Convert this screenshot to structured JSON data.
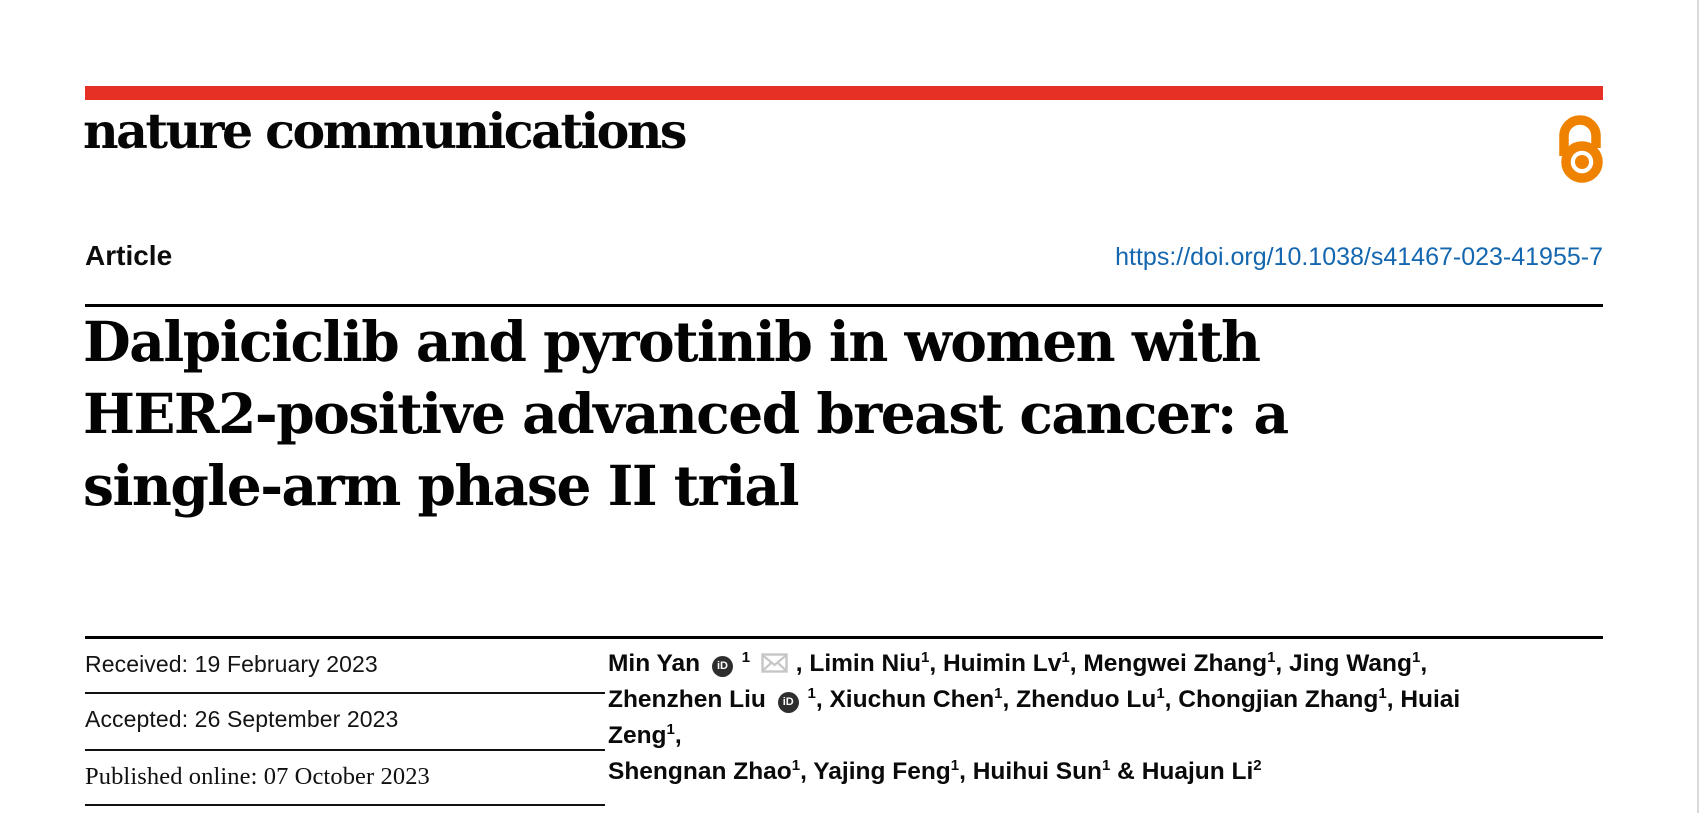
{
  "journal": {
    "name": "nature communications"
  },
  "badges": {
    "open_access_icon": "open-access-padlock"
  },
  "article": {
    "type_label": "Article",
    "doi": "https://doi.org/10.1038/s41467-023-41955-7",
    "title_lines": [
      "Dalpiciclib and pyrotinib in women with",
      "HER2-positive advanced breast cancer: a",
      "single-arm phase II trial"
    ]
  },
  "history": {
    "received": "Received: 19 February 2023",
    "accepted": "Accepted: 26 September 2023",
    "published": "Published online: 07 October 2023"
  },
  "authors": {
    "orcid_label": "iD",
    "list": [
      {
        "name": "Min Yan",
        "sup": "1",
        "orcid": true,
        "envelope": true,
        "sep": ", "
      },
      {
        "name": "Limin Niu",
        "sup": "1",
        "sep": ", "
      },
      {
        "name": "Huimin Lv",
        "sup": "1",
        "sep": ", "
      },
      {
        "name": "Mengwei Zhang",
        "sup": "1",
        "sep": ", "
      },
      {
        "name": "Jing Wang",
        "sup": "1",
        "sep": ",",
        "br": true
      },
      {
        "name": "Zhenzhen Liu",
        "sup": "1",
        "orcid": true,
        "sep": ", "
      },
      {
        "name": "Xiuchun Chen",
        "sup": "1",
        "sep": ", "
      },
      {
        "name": "Zhenduo Lu",
        "sup": "1",
        "sep": ", "
      },
      {
        "name": "Chongjian Zhang",
        "sup": "1",
        "sep": ", "
      },
      {
        "name": "Huiai Zeng",
        "sup": "1",
        "sep": ",",
        "br": true
      },
      {
        "name": "Shengnan Zhao",
        "sup": "1",
        "sep": ", "
      },
      {
        "name": "Yajing Feng",
        "sup": "1",
        "sep": ", "
      },
      {
        "name": "Huihui Sun",
        "sup": "1",
        "sep": " & "
      },
      {
        "name": "Huajun Li",
        "sup": "2",
        "sep": ""
      }
    ]
  },
  "colors": {
    "brand_red": "#e63026",
    "doi_blue": "#1467af",
    "open_access_orange": "#ef8200",
    "envelope_gray": "#c6c6c6",
    "rule_black": "#000000"
  }
}
